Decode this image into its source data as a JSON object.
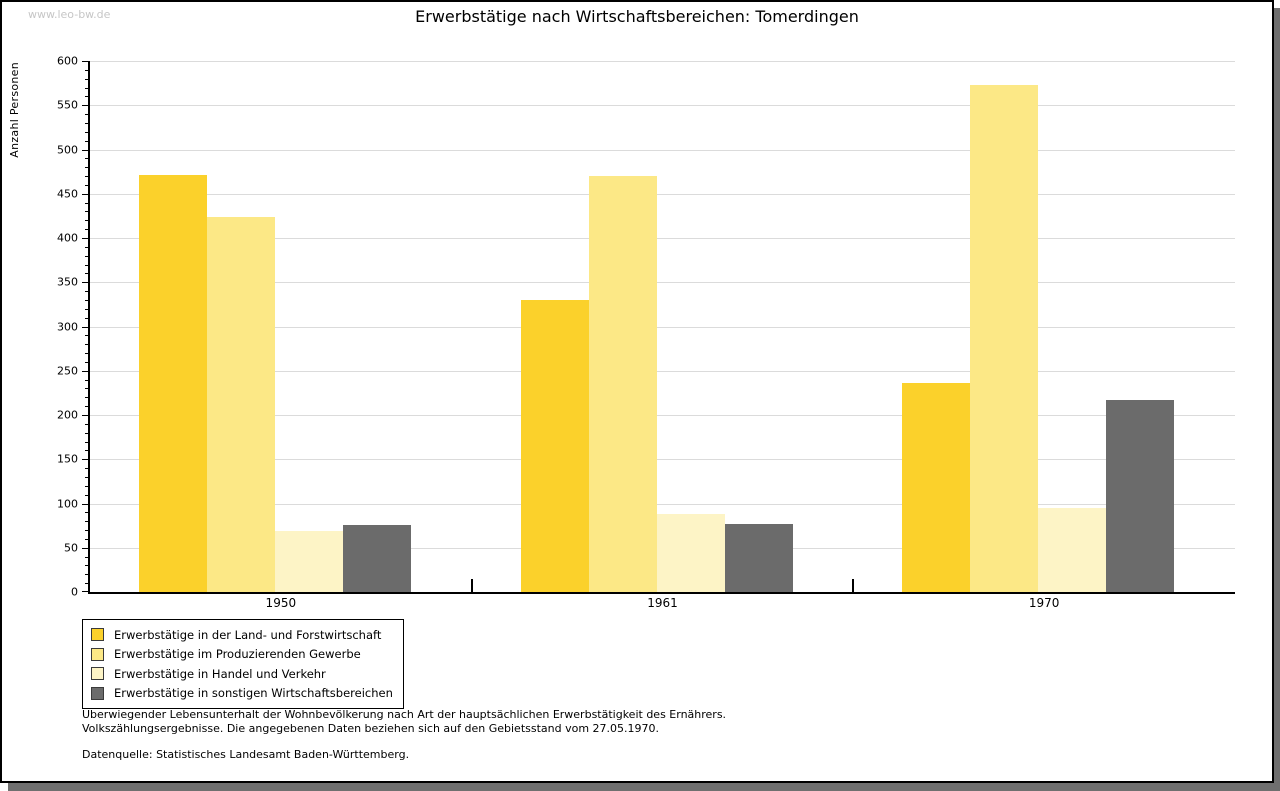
{
  "watermark": "www.leo-bw.de",
  "title": "Erwerbstätige nach Wirtschaftsbereichen: Tomerdingen",
  "chart_data": {
    "type": "bar",
    "title": "Erwerbstätige nach Wirtschaftsbereichen: Tomerdingen",
    "xlabel": "",
    "ylabel": "Anzahl Personen",
    "categories": [
      "1950",
      "1961",
      "1970"
    ],
    "series": [
      {
        "name": "Erwerbstätige in der Land- und Forstwirtschaft",
        "color": "#fbd12b",
        "values": [
          471,
          330,
          236
        ]
      },
      {
        "name": "Erwerbstätige im Produzierenden Gewerbe",
        "color": "#fce886",
        "values": [
          424,
          470,
          573
        ]
      },
      {
        "name": "Erwerbstätige in Handel und Verkehr",
        "color": "#fdf4c6",
        "values": [
          69,
          88,
          95
        ]
      },
      {
        "name": "Erwerbstätige in sonstigen Wirtschaftsbereichen",
        "color": "#6b6b6b",
        "values": [
          76,
          77,
          217
        ]
      }
    ],
    "ylim": [
      0,
      600
    ],
    "yticks": [
      0,
      50,
      100,
      150,
      200,
      250,
      300,
      350,
      400,
      450,
      500,
      550,
      600
    ],
    "ytick_minor_step": 10,
    "grid": true,
    "legend_position": "bottom-left"
  },
  "footnotes": {
    "line1": "Überwiegender Lebensunterhalt der Wohnbevölkerung nach Art der hauptsächlichen Erwerbstätigkeit des Ernährers.",
    "line2": "Volkszählungsergebnisse. Die angegebenen Daten beziehen sich auf den Gebietsstand vom 27.05.1970.",
    "source": "Datenquelle: Statistisches Landesamt Baden-Württemberg."
  },
  "colors": {
    "gridline": "#dbdbdb",
    "axis": "#000000",
    "watermark": "#c6c6c6",
    "frame_shadow": "#6f6f6f"
  }
}
